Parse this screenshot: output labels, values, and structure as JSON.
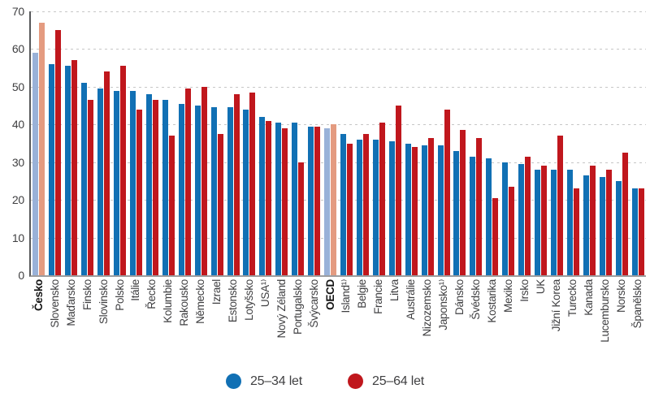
{
  "chart_data": {
    "type": "bar",
    "title": "",
    "xlabel": "",
    "ylabel": "",
    "ylim": [
      0,
      70
    ],
    "yticks": [
      0,
      10,
      20,
      30,
      40,
      50,
      60,
      70
    ],
    "grid": "horizontal-dashed",
    "legend_position": "bottom-center",
    "categories": [
      "Česko",
      "Slovensko",
      "Maďarsko",
      "Finsko",
      "Slovinsko",
      "Polsko",
      "Itálie",
      "Řecko",
      "Kolumbie",
      "Rakousko",
      "Německo",
      "Izrael",
      "Estonsko",
      "Lotyšsko",
      "USA¹⁾",
      "Nový Zéland",
      "Portugalsko",
      "Švýcarsko",
      "OECD",
      "Island¹⁾",
      "Belgie",
      "Francie",
      "Litva",
      "Austrálie",
      "Nizozemsko",
      "Japonsko¹⁾",
      "Dánsko",
      "Švédsko",
      "Kostarika",
      "Mexiko",
      "Irsko",
      "UK",
      "Jižní Korea",
      "Turecko",
      "Kanada",
      "Lucembursko",
      "Norsko",
      "Španělsko"
    ],
    "bold_categories": [
      "Česko",
      "OECD"
    ],
    "series": [
      {
        "name": "25–34 let",
        "color": "#1170b4",
        "highlight_color": "#99b1d8",
        "values": [
          59,
          56,
          55.5,
          51,
          49.5,
          49,
          49,
          48,
          46.5,
          45.5,
          45,
          44.5,
          44.5,
          44,
          42,
          40.5,
          40.5,
          39.5,
          39,
          37.5,
          36,
          36,
          35.5,
          35,
          34.5,
          34.5,
          33,
          31.5,
          31,
          30,
          29.5,
          28,
          28,
          28,
          26.5,
          26,
          25,
          23
        ]
      },
      {
        "name": "25–64 let",
        "color": "#c0171d",
        "highlight_color": "#e49b80",
        "values": [
          67,
          65,
          57,
          46.5,
          54,
          55.5,
          44,
          46.5,
          37,
          49.5,
          50,
          37.5,
          48,
          48.5,
          41,
          39,
          30,
          39.5,
          40,
          35,
          37.5,
          40.5,
          45,
          34,
          36.5,
          44,
          38.5,
          36.5,
          20.5,
          23.5,
          31.5,
          29,
          37,
          23,
          29,
          28,
          32.5,
          23
        ]
      }
    ],
    "highlight_indices": [
      0,
      18
    ]
  },
  "axes": {
    "grid_color": "#c7c7c7",
    "axis_line_color": "#57585a",
    "baseline_color": "#9d9d9f",
    "tick_text_color": "#3f3f41"
  },
  "legend": {
    "items": [
      {
        "label": "25–34 let",
        "color": "#1170b4"
      },
      {
        "label": "25–64 let",
        "color": "#c0171d"
      }
    ]
  }
}
